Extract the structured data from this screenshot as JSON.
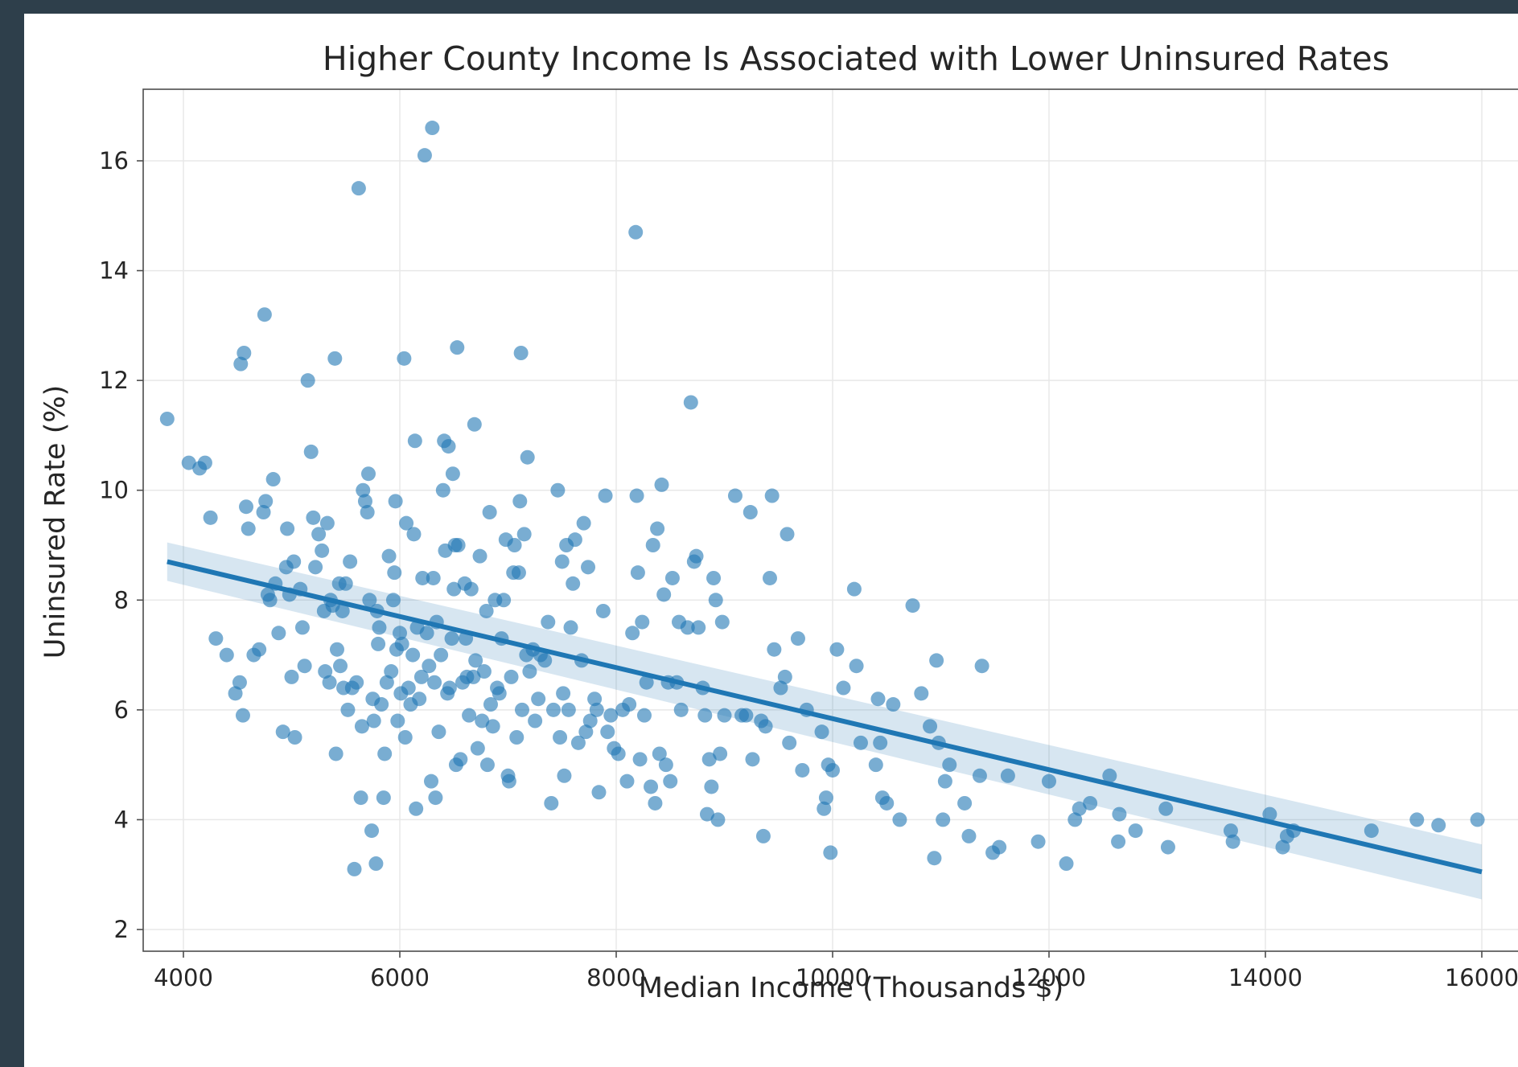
{
  "chart_data": {
    "type": "scatter",
    "title": "Higher County Income Is Associated with Lower Uninsured Rates",
    "xlabel": "Median Income (Thousands $)",
    "ylabel": "Uninsured Rate (%)",
    "xticks": [
      4000,
      6000,
      8000,
      10000,
      12000,
      14000,
      16000
    ],
    "xtick_labels": [
      "4000",
      "6000",
      "8000",
      "10000",
      "12000",
      "14000",
      "16000"
    ],
    "yticks": [
      2,
      4,
      6,
      8,
      10,
      12,
      14,
      16
    ],
    "ytick_labels": [
      "2",
      "4",
      "6",
      "8",
      "10",
      "12",
      "14",
      "16"
    ],
    "grid": true,
    "colors": {
      "points": "#1f77b4",
      "regression_line": "#1f77b4",
      "confidence_band": "#1f77b4",
      "page_background": "#2e3f4b"
    },
    "regression": {
      "x": [
        3850,
        16000
      ],
      "y": [
        8.7,
        3.05
      ],
      "ci_upper_y": [
        9.05,
        3.55
      ],
      "ci_lower_y": [
        8.35,
        2.55
      ]
    },
    "series": [
      {
        "points": [
          [
            3850,
            11.3
          ],
          [
            4050,
            10.5
          ],
          [
            4150,
            10.4
          ],
          [
            4200,
            10.5
          ],
          [
            4250,
            9.5
          ],
          [
            4300,
            7.3
          ],
          [
            4400,
            7.0
          ],
          [
            4480,
            6.3
          ],
          [
            4520,
            6.5
          ],
          [
            4550,
            5.9
          ],
          [
            4530,
            12.3
          ],
          [
            4560,
            12.5
          ],
          [
            4580,
            9.7
          ],
          [
            4600,
            9.3
          ],
          [
            4650,
            7.0
          ],
          [
            4700,
            7.1
          ],
          [
            4740,
            9.6
          ],
          [
            4750,
            13.2
          ],
          [
            4760,
            9.8
          ],
          [
            4780,
            8.1
          ],
          [
            4800,
            8.0
          ],
          [
            4830,
            10.2
          ],
          [
            4850,
            8.3
          ],
          [
            4880,
            7.4
          ],
          [
            4920,
            5.6
          ],
          [
            4950,
            8.6
          ],
          [
            4960,
            9.3
          ],
          [
            4980,
            8.1
          ],
          [
            5000,
            6.6
          ],
          [
            5020,
            8.7
          ],
          [
            5030,
            5.5
          ],
          [
            5080,
            8.2
          ],
          [
            5100,
            7.5
          ],
          [
            5120,
            6.8
          ],
          [
            5150,
            12.0
          ],
          [
            5180,
            10.7
          ],
          [
            5200,
            9.5
          ],
          [
            5220,
            8.6
          ],
          [
            5250,
            9.2
          ],
          [
            5280,
            8.9
          ],
          [
            5300,
            7.8
          ],
          [
            5310,
            6.7
          ],
          [
            5330,
            9.4
          ],
          [
            5350,
            6.5
          ],
          [
            5360,
            8.0
          ],
          [
            5380,
            7.9
          ],
          [
            5400,
            12.4
          ],
          [
            5410,
            5.2
          ],
          [
            5420,
            7.1
          ],
          [
            5440,
            8.3
          ],
          [
            5450,
            6.8
          ],
          [
            5470,
            7.8
          ],
          [
            5480,
            6.4
          ],
          [
            5500,
            8.3
          ],
          [
            5520,
            6.0
          ],
          [
            5540,
            8.7
          ],
          [
            5560,
            6.4
          ],
          [
            5580,
            3.1
          ],
          [
            5600,
            6.5
          ],
          [
            5620,
            15.5
          ],
          [
            5640,
            4.4
          ],
          [
            5650,
            5.7
          ],
          [
            5660,
            10.0
          ],
          [
            5680,
            9.8
          ],
          [
            5700,
            9.6
          ],
          [
            5710,
            10.3
          ],
          [
            5720,
            8.0
          ],
          [
            5740,
            3.8
          ],
          [
            5750,
            6.2
          ],
          [
            5760,
            5.8
          ],
          [
            5780,
            3.2
          ],
          [
            5790,
            7.8
          ],
          [
            5800,
            7.2
          ],
          [
            5810,
            7.5
          ],
          [
            5830,
            6.1
          ],
          [
            5850,
            4.4
          ],
          [
            5860,
            5.2
          ],
          [
            5880,
            6.5
          ],
          [
            5900,
            8.8
          ],
          [
            5920,
            6.7
          ],
          [
            5940,
            8.0
          ],
          [
            5950,
            8.5
          ],
          [
            5960,
            9.8
          ],
          [
            5970,
            7.1
          ],
          [
            5980,
            5.8
          ],
          [
            6000,
            7.4
          ],
          [
            6010,
            6.3
          ],
          [
            6020,
            7.2
          ],
          [
            6040,
            12.4
          ],
          [
            6050,
            5.5
          ],
          [
            6060,
            9.4
          ],
          [
            6080,
            6.4
          ],
          [
            6100,
            6.1
          ],
          [
            6120,
            7.0
          ],
          [
            6130,
            9.2
          ],
          [
            6140,
            10.9
          ],
          [
            6150,
            4.2
          ],
          [
            6160,
            7.5
          ],
          [
            6180,
            6.2
          ],
          [
            6200,
            6.6
          ],
          [
            6210,
            8.4
          ],
          [
            6230,
            16.1
          ],
          [
            6250,
            7.4
          ],
          [
            6270,
            6.8
          ],
          [
            6290,
            4.7
          ],
          [
            6300,
            16.6
          ],
          [
            6310,
            8.4
          ],
          [
            6320,
            6.5
          ],
          [
            6330,
            4.4
          ],
          [
            6340,
            7.6
          ],
          [
            6360,
            5.6
          ],
          [
            6380,
            7.0
          ],
          [
            6400,
            10.0
          ],
          [
            6410,
            10.9
          ],
          [
            6420,
            8.9
          ],
          [
            6440,
            6.3
          ],
          [
            6450,
            10.8
          ],
          [
            6460,
            6.4
          ],
          [
            6480,
            7.3
          ],
          [
            6490,
            10.3
          ],
          [
            6500,
            8.2
          ],
          [
            6510,
            9.0
          ],
          [
            6520,
            5.0
          ],
          [
            6530,
            12.6
          ],
          [
            6540,
            9.0
          ],
          [
            6560,
            5.1
          ],
          [
            6580,
            6.5
          ],
          [
            6600,
            8.3
          ],
          [
            6610,
            7.3
          ],
          [
            6620,
            6.6
          ],
          [
            6640,
            5.9
          ],
          [
            6660,
            8.2
          ],
          [
            6680,
            6.6
          ],
          [
            6690,
            11.2
          ],
          [
            6700,
            6.9
          ],
          [
            6720,
            5.3
          ],
          [
            6740,
            8.8
          ],
          [
            6760,
            5.8
          ],
          [
            6780,
            6.7
          ],
          [
            6800,
            7.8
          ],
          [
            6810,
            5.0
          ],
          [
            6830,
            9.6
          ],
          [
            6840,
            6.1
          ],
          [
            6860,
            5.7
          ],
          [
            6880,
            8.0
          ],
          [
            6900,
            6.4
          ],
          [
            6920,
            6.3
          ],
          [
            6940,
            7.3
          ],
          [
            6960,
            8.0
          ],
          [
            6980,
            9.1
          ],
          [
            7000,
            4.8
          ],
          [
            7010,
            4.7
          ],
          [
            7030,
            6.6
          ],
          [
            7050,
            8.5
          ],
          [
            7060,
            9.0
          ],
          [
            7080,
            5.5
          ],
          [
            7100,
            8.5
          ],
          [
            7110,
            9.8
          ],
          [
            7120,
            12.5
          ],
          [
            7130,
            6.0
          ],
          [
            7150,
            9.2
          ],
          [
            7170,
            7.0
          ],
          [
            7180,
            10.6
          ],
          [
            7200,
            6.7
          ],
          [
            7230,
            7.1
          ],
          [
            7250,
            5.8
          ],
          [
            7280,
            6.2
          ],
          [
            7300,
            7.0
          ],
          [
            7340,
            6.9
          ],
          [
            7370,
            7.6
          ],
          [
            7400,
            4.3
          ],
          [
            7420,
            6.0
          ],
          [
            7460,
            10.0
          ],
          [
            7480,
            5.5
          ],
          [
            7500,
            8.7
          ],
          [
            7510,
            6.3
          ],
          [
            7520,
            4.8
          ],
          [
            7540,
            9.0
          ],
          [
            7560,
            6.0
          ],
          [
            7580,
            7.5
          ],
          [
            7600,
            8.3
          ],
          [
            7620,
            9.1
          ],
          [
            7650,
            5.4
          ],
          [
            7680,
            6.9
          ],
          [
            7700,
            9.4
          ],
          [
            7720,
            5.6
          ],
          [
            7740,
            8.6
          ],
          [
            7760,
            5.8
          ],
          [
            7800,
            6.2
          ],
          [
            7820,
            6.0
          ],
          [
            7840,
            4.5
          ],
          [
            7880,
            7.8
          ],
          [
            7900,
            9.9
          ],
          [
            7920,
            5.6
          ],
          [
            7950,
            5.9
          ],
          [
            7980,
            5.3
          ],
          [
            8020,
            5.2
          ],
          [
            8060,
            6.0
          ],
          [
            8100,
            4.7
          ],
          [
            8120,
            6.1
          ],
          [
            8150,
            7.4
          ],
          [
            8180,
            14.7
          ],
          [
            8190,
            9.9
          ],
          [
            8200,
            8.5
          ],
          [
            8220,
            5.1
          ],
          [
            8240,
            7.6
          ],
          [
            8260,
            5.9
          ],
          [
            8280,
            6.5
          ],
          [
            8320,
            4.6
          ],
          [
            8340,
            9.0
          ],
          [
            8360,
            4.3
          ],
          [
            8380,
            9.3
          ],
          [
            8400,
            5.2
          ],
          [
            8420,
            10.1
          ],
          [
            8440,
            8.1
          ],
          [
            8460,
            5.0
          ],
          [
            8480,
            6.5
          ],
          [
            8500,
            4.7
          ],
          [
            8520,
            8.4
          ],
          [
            8560,
            6.5
          ],
          [
            8580,
            7.6
          ],
          [
            8600,
            6.0
          ],
          [
            8660,
            7.5
          ],
          [
            8690,
            11.6
          ],
          [
            8720,
            8.7
          ],
          [
            8740,
            8.8
          ],
          [
            8760,
            7.5
          ],
          [
            8800,
            6.4
          ],
          [
            8820,
            5.9
          ],
          [
            8840,
            4.1
          ],
          [
            8860,
            5.1
          ],
          [
            8880,
            4.6
          ],
          [
            8900,
            8.4
          ],
          [
            8920,
            8.0
          ],
          [
            8940,
            4.0
          ],
          [
            8960,
            5.2
          ],
          [
            8980,
            7.6
          ],
          [
            9000,
            5.9
          ],
          [
            9100,
            9.9
          ],
          [
            9160,
            5.9
          ],
          [
            9200,
            5.9
          ],
          [
            9240,
            9.6
          ],
          [
            9260,
            5.1
          ],
          [
            9340,
            5.8
          ],
          [
            9360,
            3.7
          ],
          [
            9380,
            5.7
          ],
          [
            9420,
            8.4
          ],
          [
            9440,
            9.9
          ],
          [
            9460,
            7.1
          ],
          [
            9520,
            6.4
          ],
          [
            9560,
            6.6
          ],
          [
            9580,
            9.2
          ],
          [
            9600,
            5.4
          ],
          [
            9680,
            7.3
          ],
          [
            9720,
            4.9
          ],
          [
            9760,
            6.0
          ],
          [
            9900,
            5.6
          ],
          [
            9920,
            4.2
          ],
          [
            9940,
            4.4
          ],
          [
            9960,
            5.0
          ],
          [
            9980,
            3.4
          ],
          [
            10000,
            4.9
          ],
          [
            10040,
            7.1
          ],
          [
            10100,
            6.4
          ],
          [
            10200,
            8.2
          ],
          [
            10220,
            6.8
          ],
          [
            10260,
            5.4
          ],
          [
            10400,
            5.0
          ],
          [
            10420,
            6.2
          ],
          [
            10440,
            5.4
          ],
          [
            10460,
            4.4
          ],
          [
            10500,
            4.3
          ],
          [
            10560,
            6.1
          ],
          [
            10620,
            4.0
          ],
          [
            10740,
            7.9
          ],
          [
            10820,
            6.3
          ],
          [
            10900,
            5.7
          ],
          [
            10940,
            3.3
          ],
          [
            10960,
            6.9
          ],
          [
            10980,
            5.4
          ],
          [
            11020,
            4.0
          ],
          [
            11040,
            4.7
          ],
          [
            11080,
            5.0
          ],
          [
            11220,
            4.3
          ],
          [
            11260,
            3.7
          ],
          [
            11360,
            4.8
          ],
          [
            11380,
            6.8
          ],
          [
            11480,
            3.4
          ],
          [
            11540,
            3.5
          ],
          [
            11620,
            4.8
          ],
          [
            11900,
            3.6
          ],
          [
            12000,
            4.7
          ],
          [
            12160,
            3.2
          ],
          [
            12240,
            4.0
          ],
          [
            12280,
            4.2
          ],
          [
            12380,
            4.3
          ],
          [
            12560,
            4.8
          ],
          [
            12640,
            3.6
          ],
          [
            12650,
            4.1
          ],
          [
            12800,
            3.8
          ],
          [
            13080,
            4.2
          ],
          [
            13100,
            3.5
          ],
          [
            13680,
            3.8
          ],
          [
            13700,
            3.6
          ],
          [
            14040,
            4.1
          ],
          [
            14160,
            3.5
          ],
          [
            14200,
            3.7
          ],
          [
            14260,
            3.8
          ],
          [
            14980,
            3.8
          ],
          [
            15400,
            4.0
          ],
          [
            15600,
            3.9
          ],
          [
            15960,
            4.0
          ]
        ]
      }
    ]
  }
}
